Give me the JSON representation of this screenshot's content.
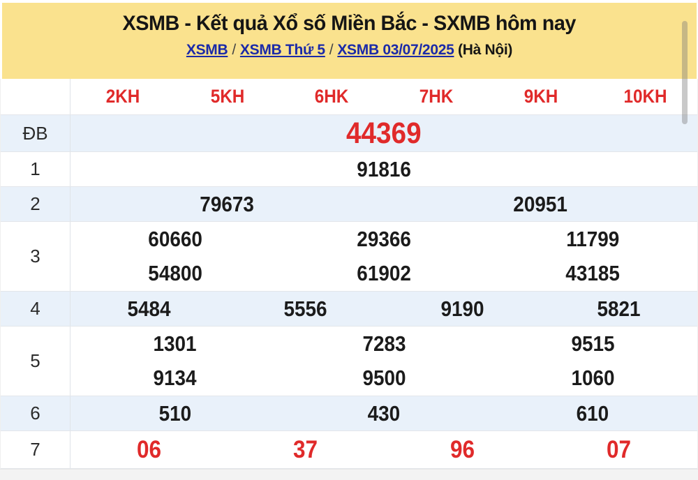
{
  "header": {
    "title": "XSMB - Kết quả Xổ số Miền Bắc - SXMB hôm nay",
    "breadcrumb": {
      "links": [
        "XSMB",
        "XSMB Thứ 5",
        "XSMB 03/07/2025"
      ],
      "separator": "/",
      "suffix": "(Hà Nội)"
    }
  },
  "table": {
    "column_headers": [
      "2KH",
      "5KH",
      "6HK",
      "7HK",
      "9KH",
      "10KH"
    ],
    "rows": [
      {
        "label": "ĐB",
        "special": true,
        "zebra": true,
        "lines": [
          [
            "44369"
          ]
        ]
      },
      {
        "label": "1",
        "lines": [
          [
            "91816"
          ]
        ]
      },
      {
        "label": "2",
        "zebra": true,
        "lines": [
          [
            "79673",
            "20951"
          ]
        ]
      },
      {
        "label": "3",
        "lines": [
          [
            "60660",
            "29366",
            "11799"
          ],
          [
            "54800",
            "61902",
            "43185"
          ]
        ]
      },
      {
        "label": "4",
        "zebra": true,
        "lines": [
          [
            "5484",
            "5556",
            "9190",
            "5821"
          ]
        ]
      },
      {
        "label": "5",
        "lines": [
          [
            "1301",
            "7283",
            "9515"
          ],
          [
            "9134",
            "9500",
            "1060"
          ]
        ]
      },
      {
        "label": "6",
        "zebra": true,
        "lines": [
          [
            "510",
            "430",
            "610"
          ]
        ]
      },
      {
        "label": "7",
        "red": true,
        "lines": [
          [
            "06",
            "37",
            "96",
            "07"
          ]
        ]
      }
    ]
  },
  "colors": {
    "banner_bg": "#fae28e",
    "zebra_bg": "#e9f1fa",
    "accent_red": "#e02a2a",
    "link_blue": "#1b2aa8"
  }
}
